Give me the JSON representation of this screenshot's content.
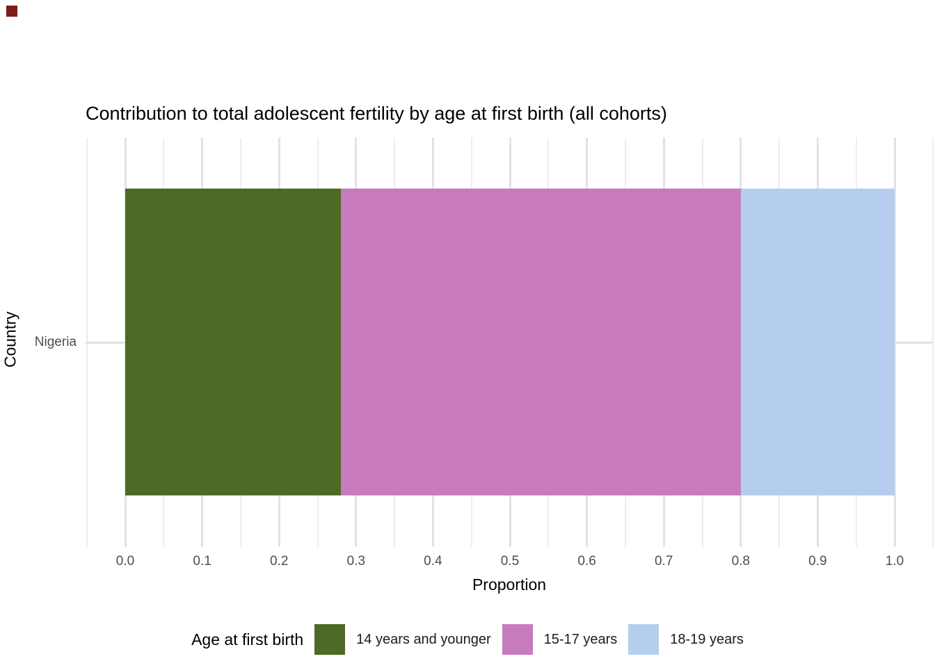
{
  "corner_marker_color": "#7E1A1A",
  "title": "Contribution to total adolescent fertility by age at first birth (all cohorts)",
  "chart_data": {
    "type": "bar",
    "orientation": "horizontal",
    "stacked": true,
    "title": "Contribution to total adolescent fertility by age at first birth (all cohorts)",
    "categories": [
      "Nigeria"
    ],
    "series": [
      {
        "name": "14 years and younger",
        "color": "#4D6A26",
        "values": [
          0.28
        ]
      },
      {
        "name": "15-17 years",
        "color": "#C77ABE",
        "values": [
          0.52
        ]
      },
      {
        "name": "18-19 years",
        "color": "#B5CEEE",
        "values": [
          0.2
        ]
      }
    ],
    "xlabel": "Proportion",
    "ylabel": "Country",
    "xlim": [
      -0.05,
      1.05
    ],
    "x_ticks": [
      "0.0",
      "0.1",
      "0.2",
      "0.3",
      "0.4",
      "0.5",
      "0.6",
      "0.7",
      "0.8",
      "0.9",
      "1.0"
    ],
    "grid": {
      "vertical_major_step": 0.1,
      "vertical_minor_step": 0.05,
      "horizontal_at_category_center": true
    },
    "gridline_major_color": "#E2E2E2",
    "gridline_minor_color": "#EDEDED",
    "axis_text_color": "#4D4D4D",
    "legend_title": "Age at first birth",
    "legend_position": "bottom"
  }
}
